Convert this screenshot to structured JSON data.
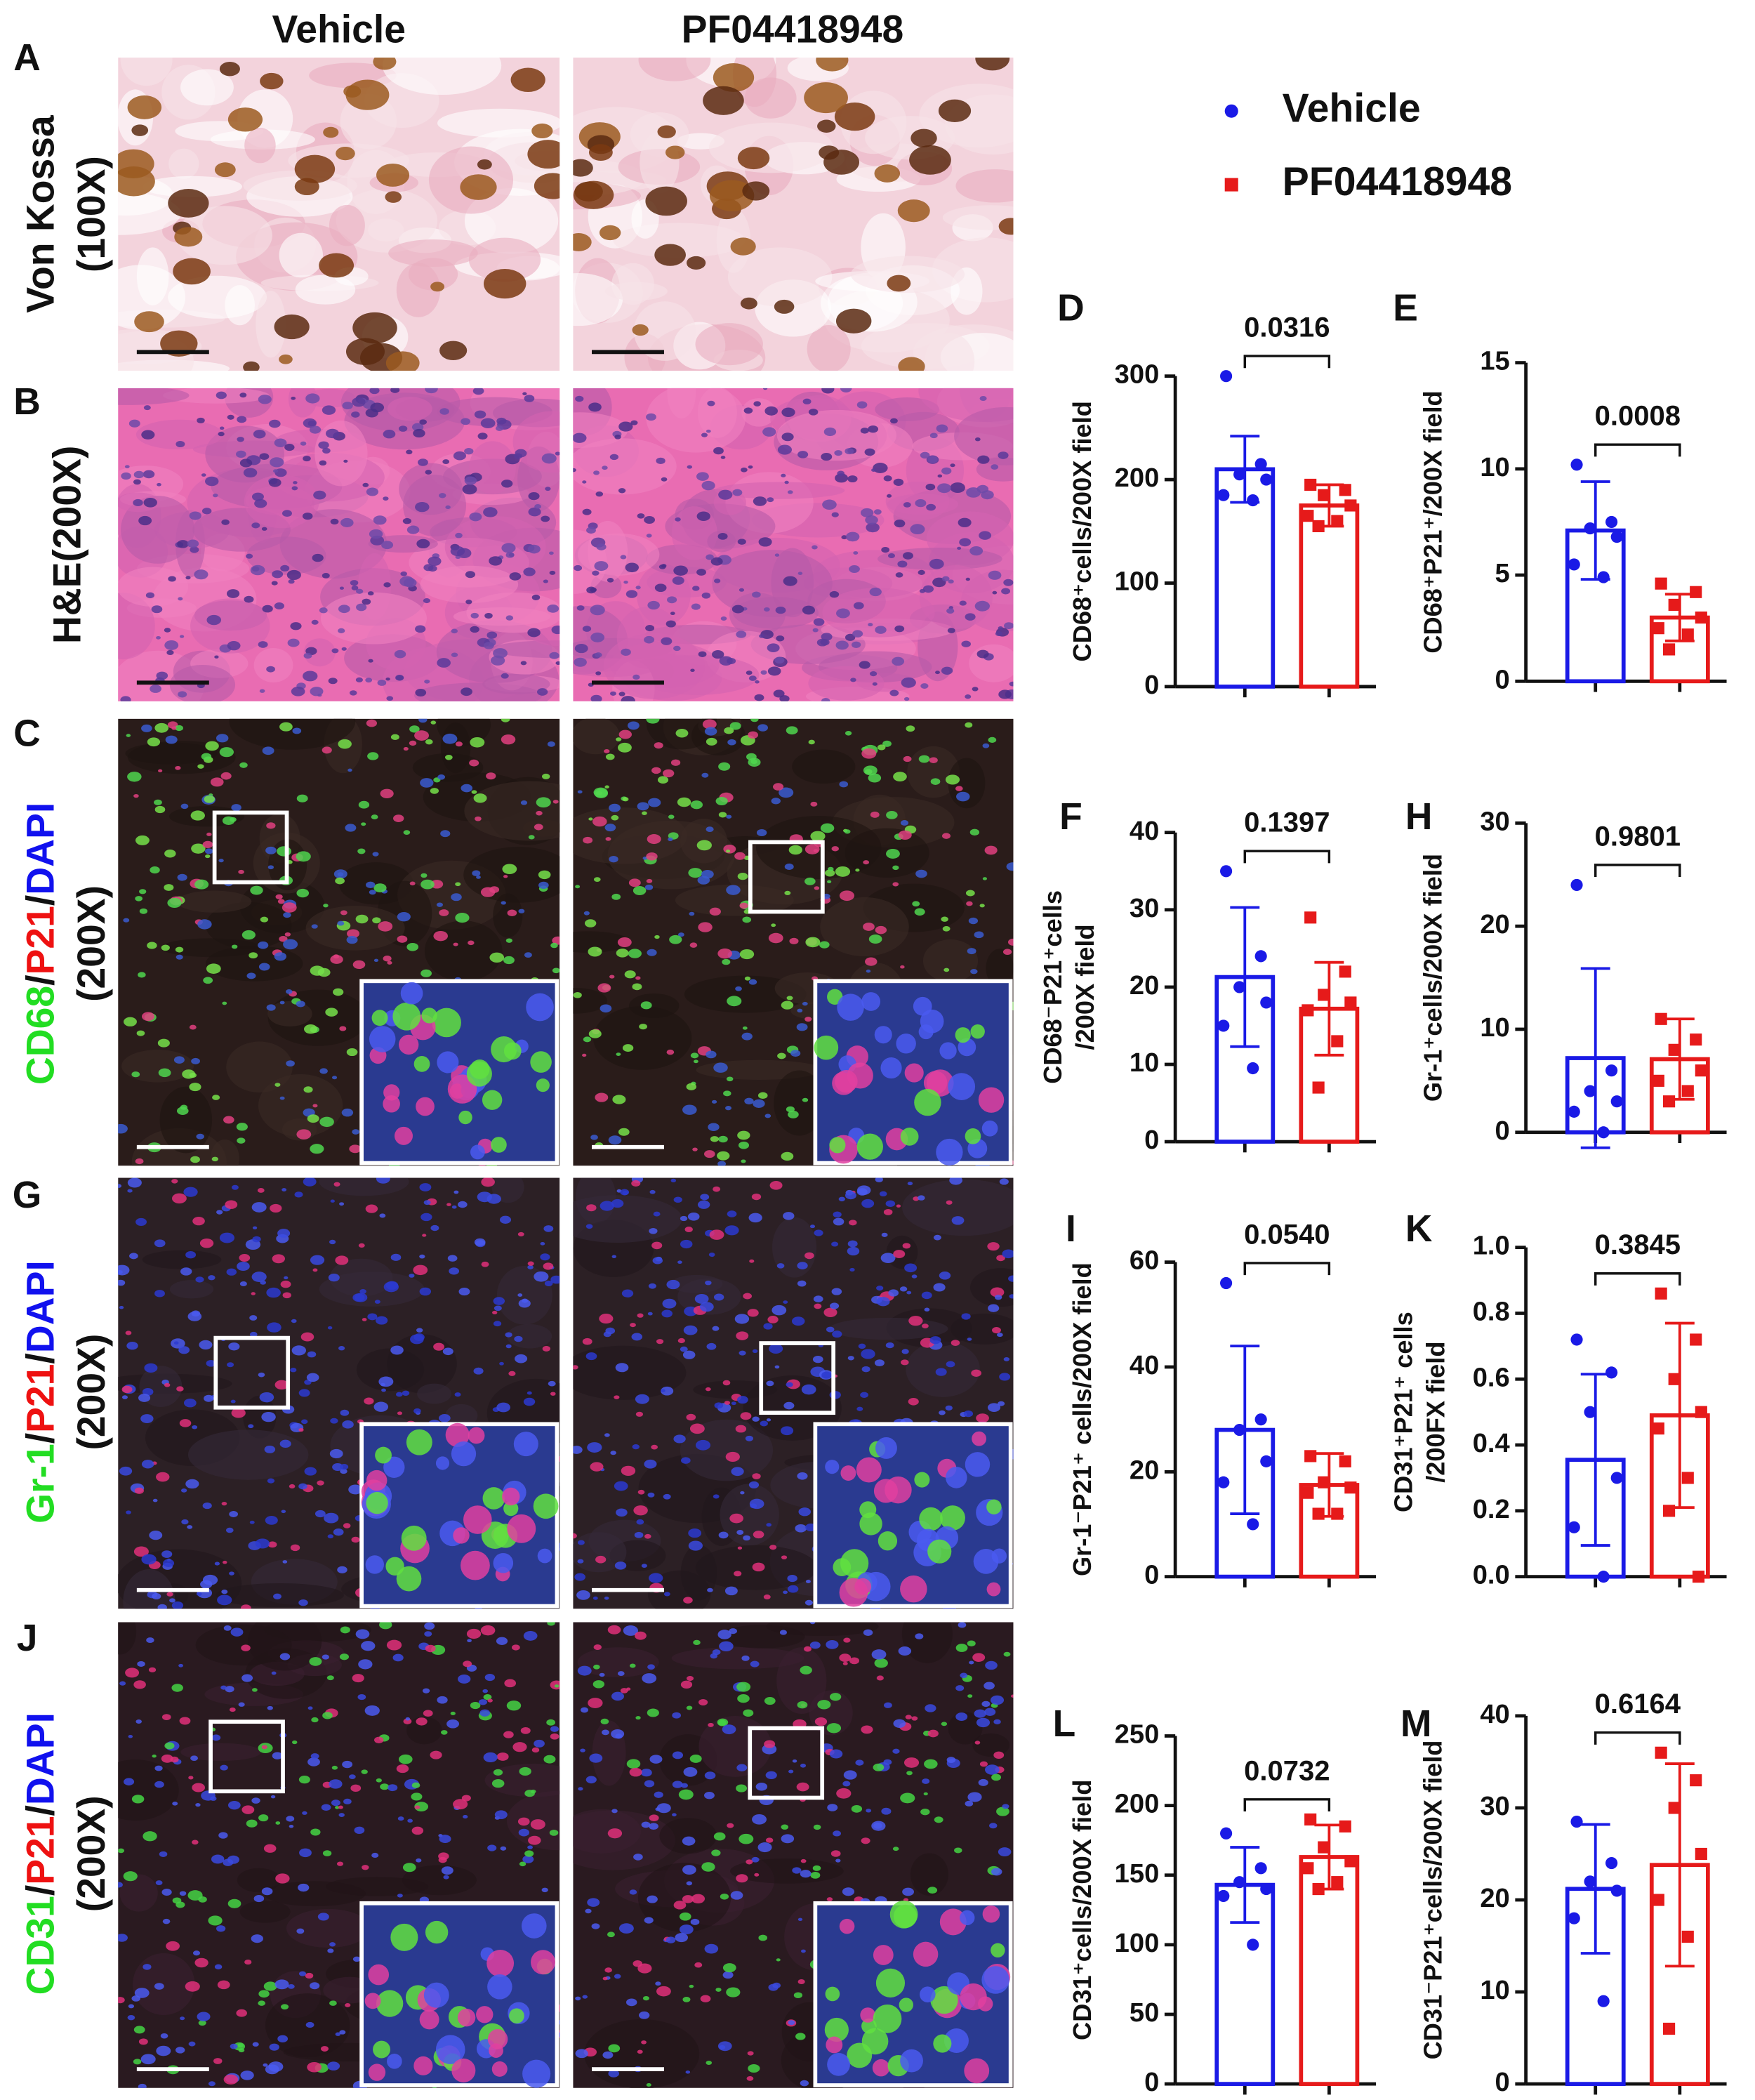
{
  "figure": {
    "columns": [
      "Vehicle",
      "PF04418948"
    ],
    "rows": [
      {
        "letter": "A",
        "lines": [
          [
            {
              "text": "Von Kossa",
              "color": "#111111"
            }
          ],
          [
            {
              "text": "(100X)",
              "color": "#111111"
            }
          ]
        ]
      },
      {
        "letter": "B",
        "lines": [
          [
            {
              "text": "H&E(200X)",
              "color": "#111111"
            }
          ]
        ]
      },
      {
        "letter": "C",
        "lines": [
          [
            {
              "text": "CD68",
              "color": "#22dd22"
            },
            {
              "text": "/",
              "color": "#111111"
            },
            {
              "text": "P21",
              "color": "#ee1111"
            },
            {
              "text": "/",
              "color": "#111111"
            },
            {
              "text": "DAPI",
              "color": "#1111ee"
            }
          ],
          [
            {
              "text": "(200X)",
              "color": "#111111"
            }
          ]
        ]
      },
      {
        "letter": "G",
        "lines": [
          [
            {
              "text": "Gr-1",
              "color": "#22dd22"
            },
            {
              "text": "/",
              "color": "#111111"
            },
            {
              "text": "P21",
              "color": "#ee1111"
            },
            {
              "text": "/",
              "color": "#111111"
            },
            {
              "text": "DAPI",
              "color": "#1111ee"
            }
          ],
          [
            {
              "text": "(200X)",
              "color": "#111111"
            }
          ]
        ]
      },
      {
        "letter": "J",
        "lines": [
          [
            {
              "text": "CD31",
              "color": "#22dd22"
            },
            {
              "text": "/",
              "color": "#111111"
            },
            {
              "text": "P21",
              "color": "#ee1111"
            },
            {
              "text": "/",
              "color": "#111111"
            },
            {
              "text": "DAPI",
              "color": "#1111ee"
            }
          ],
          [
            {
              "text": "(200X)",
              "color": "#111111"
            }
          ]
        ]
      }
    ]
  },
  "legend": {
    "position": "top-right",
    "series": [
      {
        "name": "Vehicle",
        "color": "#1a1ae6",
        "marker": "circle"
      },
      {
        "name": "PF04418948",
        "color": "#e61a1a",
        "marker": "square"
      }
    ]
  },
  "chart_data": [
    {
      "type": "bar",
      "panel": "D",
      "ylabel": [
        "CD68⁺cells/200X field"
      ],
      "ylim": [
        0,
        300
      ],
      "yticks": [
        0,
        100,
        200,
        300
      ],
      "values": [
        210,
        175
      ],
      "errors": [
        32,
        20
      ],
      "points": [
        [
          300,
          215,
          205,
          200,
          185,
          180
        ],
        [
          195,
          190,
          185,
          175,
          165,
          160,
          155
        ]
      ],
      "p_value": "0.0316"
    },
    {
      "type": "bar",
      "panel": "E",
      "ylabel": [
        "CD68⁺P21⁺/200X field"
      ],
      "ylim": [
        0,
        15
      ],
      "yticks": [
        0,
        5,
        10,
        15
      ],
      "values": [
        7.1,
        3.0
      ],
      "errors": [
        2.3,
        1.1
      ],
      "points": [
        [
          10.2,
          7.5,
          7.2,
          6.8,
          5.5,
          4.9
        ],
        [
          4.6,
          4.2,
          3.6,
          3.0,
          2.5,
          2.2,
          1.5
        ]
      ],
      "p_value": "0.0008"
    },
    {
      "type": "bar",
      "panel": "F",
      "ylabel": [
        "CD68⁻P21⁺cells",
        "/200X field"
      ],
      "ylim": [
        0,
        40
      ],
      "yticks": [
        0,
        10,
        20,
        30,
        40
      ],
      "values": [
        21.3,
        17.2
      ],
      "errors": [
        9,
        6
      ],
      "points": [
        [
          35,
          24,
          20,
          18,
          15,
          9.5
        ],
        [
          29,
          22,
          19,
          18,
          17,
          13,
          7
        ]
      ],
      "p_value": "0.1397"
    },
    {
      "type": "bar",
      "panel": "H",
      "ylabel": [
        "Gr-1⁺cells/200X field"
      ],
      "ylim": [
        0,
        30
      ],
      "yticks": [
        0,
        10,
        20,
        30
      ],
      "values": [
        7.2,
        7.1
      ],
      "errors": [
        8.7,
        3.9
      ],
      "points": [
        [
          24,
          6,
          4,
          3,
          2,
          0
        ],
        [
          11,
          9,
          8,
          6,
          5,
          4,
          3
        ]
      ],
      "p_value": "0.9801"
    },
    {
      "type": "bar",
      "panel": "I",
      "ylabel": [
        "Gr-1⁻P21⁺ cells/200X field"
      ],
      "ylim": [
        0,
        60
      ],
      "yticks": [
        0,
        20,
        40,
        60
      ],
      "values": [
        28,
        17.5
      ],
      "errors": [
        16,
        6
      ],
      "points": [
        [
          56,
          30,
          28,
          22,
          18,
          10
        ],
        [
          23,
          22,
          18,
          17,
          16,
          12,
          12
        ]
      ],
      "p_value": "0.0540"
    },
    {
      "type": "bar",
      "panel": "K",
      "ylabel": [
        "CD31⁺P21⁺ cells",
        "/200FX field"
      ],
      "ylim": [
        0,
        1
      ],
      "yticks": [
        {
          "value": 0,
          "label": "0.0"
        },
        0.2,
        0.4,
        0.6,
        0.8,
        {
          "value": 1,
          "label": "1.0"
        }
      ],
      "values": [
        0.355,
        0.49
      ],
      "errors": [
        0.26,
        0.28
      ],
      "points": [
        [
          0.72,
          0.62,
          0.5,
          0.3,
          0.15,
          0
        ],
        [
          0.86,
          0.72,
          0.6,
          0.5,
          0.45,
          0.3,
          0.2,
          0
        ]
      ],
      "p_value": "0.3845"
    },
    {
      "type": "bar",
      "panel": "L",
      "ylabel": [
        "CD31⁺cells/200X field"
      ],
      "ylim": [
        0,
        250
      ],
      "yticks": [
        0,
        50,
        100,
        150,
        200,
        250
      ],
      "values": [
        143,
        163
      ],
      "errors": [
        27,
        23
      ],
      "points": [
        [
          180,
          155,
          145,
          140,
          135,
          100
        ],
        [
          190,
          185,
          170,
          160,
          155,
          145,
          140
        ]
      ],
      "p_value": "0.0732"
    },
    {
      "type": "bar",
      "panel": "M",
      "ylabel": [
        "CD31⁻P21⁺cells/200X field"
      ],
      "ylim": [
        0,
        40
      ],
      "yticks": [
        0,
        10,
        20,
        30,
        40
      ],
      "values": [
        21.2,
        23.8
      ],
      "errors": [
        7,
        11
      ],
      "points": [
        [
          28.5,
          24,
          22,
          21,
          18,
          9
        ],
        [
          36,
          33,
          30,
          25,
          20,
          16,
          6
        ]
      ],
      "p_value": "0.6164"
    }
  ]
}
